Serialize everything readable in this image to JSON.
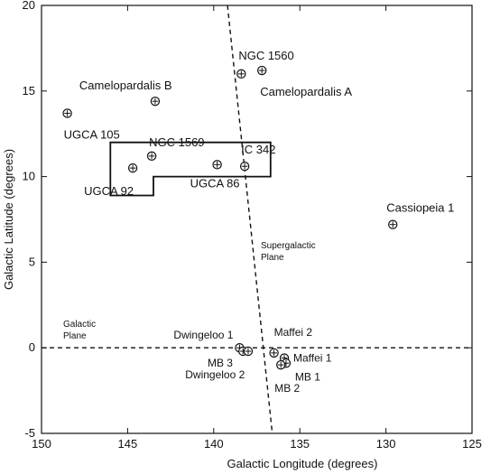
{
  "chart_data": {
    "type": "scatter",
    "title": "",
    "xlabel": "Galactic Longitude (degrees)",
    "ylabel": "Galactic Latitude (degrees)",
    "xlim": [
      150,
      125
    ],
    "ylim": [
      -5,
      20
    ],
    "x_reversed": true,
    "xticks": [
      150,
      145,
      140,
      135,
      130,
      125
    ],
    "yticks": [
      -5,
      0,
      5,
      10,
      15,
      20
    ],
    "grid": false,
    "legend": "none",
    "marker": "circle-plus",
    "points": [
      {
        "label": "NGC 1560",
        "x": 138.4,
        "y": 16.0
      },
      {
        "label": "Camelopardalis A",
        "x": 137.2,
        "y": 16.2
      },
      {
        "label": "Camelopardalis B",
        "x": 143.4,
        "y": 14.4
      },
      {
        "label": "UGCA 105",
        "x": 148.5,
        "y": 13.7
      },
      {
        "label": "NGC 1569",
        "x": 143.6,
        "y": 11.2
      },
      {
        "label": "UGCA 92",
        "x": 144.7,
        "y": 10.5
      },
      {
        "label": "UGCA 86",
        "x": 139.8,
        "y": 10.7
      },
      {
        "label": "IC 342",
        "x": 138.2,
        "y": 10.6
      },
      {
        "label": "Cassiopeia 1",
        "x": 129.6,
        "y": 7.2
      },
      {
        "label": "Maffei 2",
        "x": 136.5,
        "y": -0.3
      },
      {
        "label": "Maffei 1",
        "x": 135.9,
        "y": -0.6
      },
      {
        "label": "MB 1",
        "x": 135.8,
        "y": -0.9
      },
      {
        "label": "MB 2",
        "x": 136.1,
        "y": -1.0
      },
      {
        "label": "Dwingeloo 1",
        "x": 138.5,
        "y": 0.0
      },
      {
        "label": "Dwingeloo 2",
        "x": 138.3,
        "y": -0.2
      },
      {
        "label": "MB 3",
        "x": 138.0,
        "y": -0.2
      }
    ],
    "annotations": [
      {
        "text_lines": [
          "Supergalactic",
          "Plane"
        ]
      },
      {
        "text_lines": [
          "Galactic",
          "Plane"
        ]
      }
    ],
    "lines": [
      {
        "name": "galactic-plane",
        "style": "dashed",
        "points": [
          [
            150,
            0
          ],
          [
            125,
            0
          ]
        ]
      },
      {
        "name": "supergalactic-plane",
        "style": "dashed",
        "points": [
          [
            139.2,
            20
          ],
          [
            136.6,
            -5
          ]
        ]
      }
    ],
    "region_outline": [
      [
        146.0,
        12.0
      ],
      [
        136.7,
        12.0
      ],
      [
        136.7,
        10.0
      ],
      [
        143.5,
        10.0
      ],
      [
        143.5,
        8.9
      ],
      [
        146.0,
        8.9
      ]
    ]
  }
}
